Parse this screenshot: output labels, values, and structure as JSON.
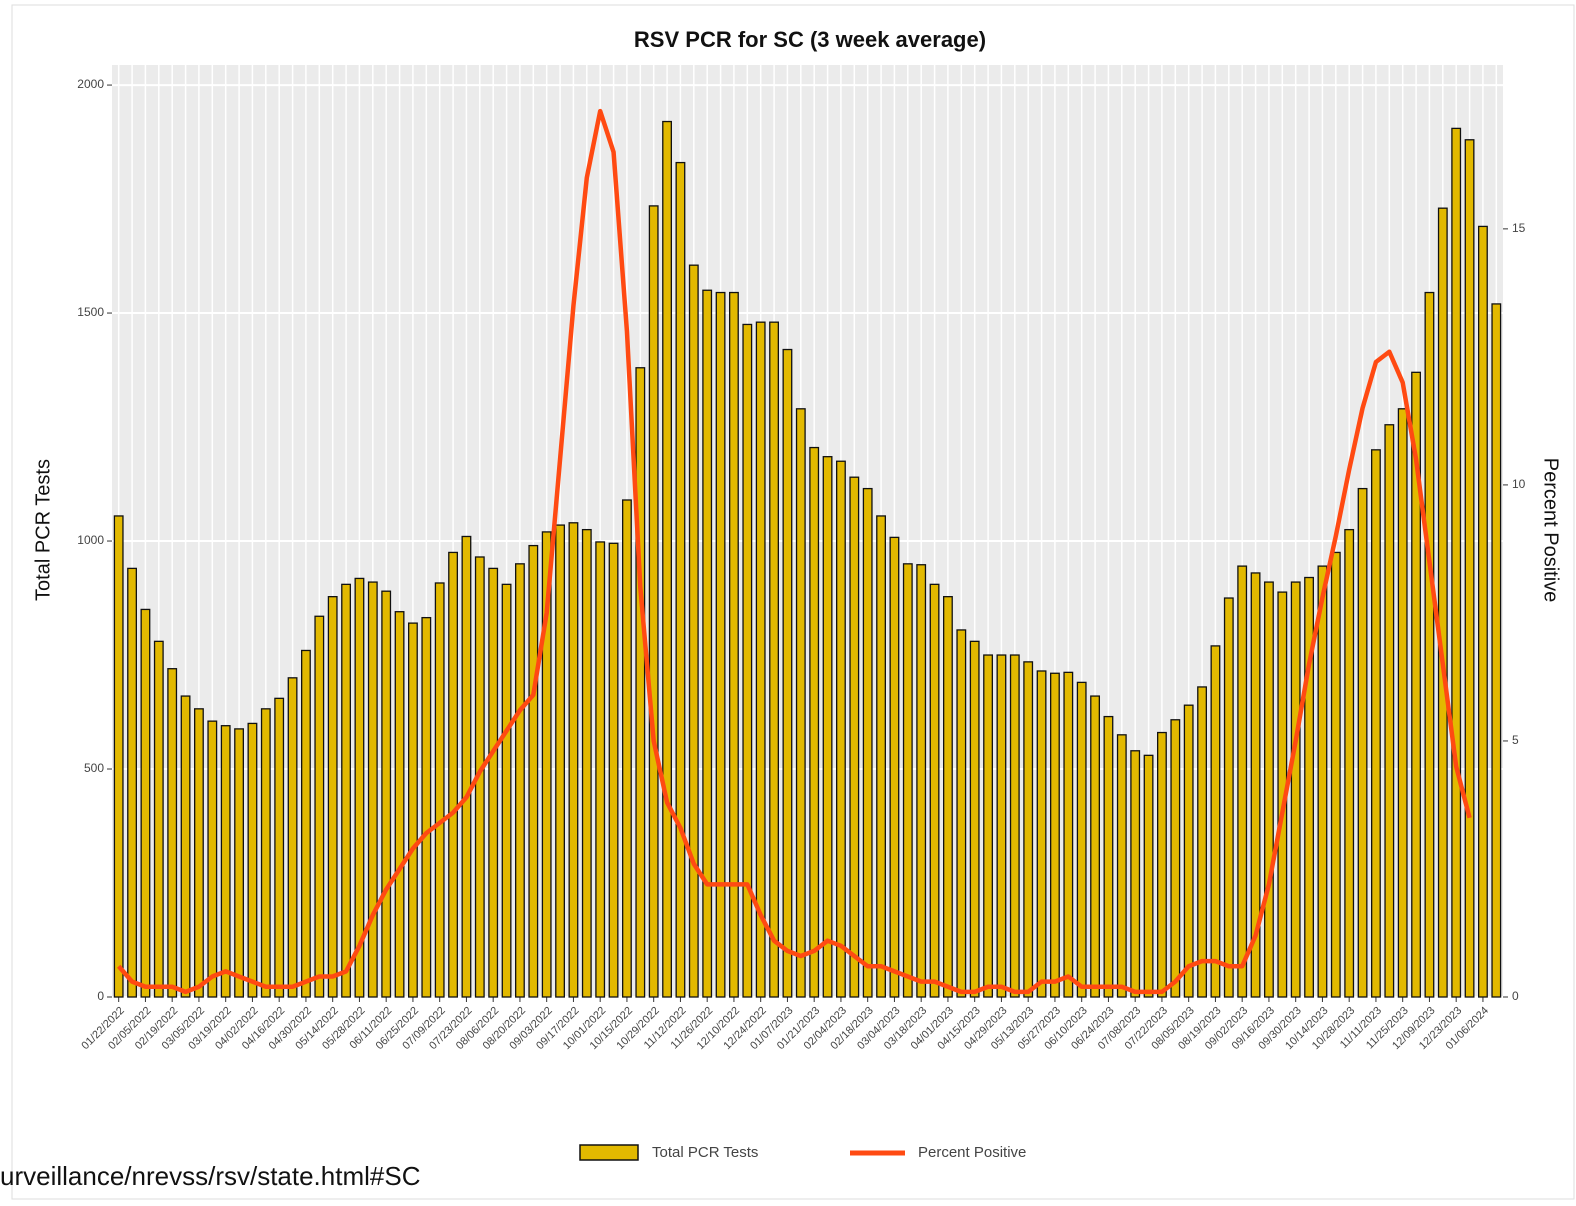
{
  "chart_data": {
    "type": "bar_line",
    "title": "RSV PCR for SC (3 week average)",
    "y_label": "Total PCR Tests",
    "y2_label": "Percent Positive",
    "annotation": "urveillance/nrevss/rsv/state.html#SC",
    "categories": [
      "01/22/2022",
      null,
      "02/05/2022",
      null,
      "02/19/2022",
      null,
      "03/05/2022",
      null,
      "03/19/2022",
      null,
      "04/02/2022",
      null,
      "04/16/2022",
      null,
      "04/30/2022",
      null,
      "05/14/2022",
      null,
      "05/28/2022",
      null,
      "06/11/2022",
      null,
      "06/25/2022",
      null,
      "07/09/2022",
      null,
      "07/23/2022",
      null,
      "08/06/2022",
      null,
      "08/20/2022",
      null,
      "09/03/2022",
      null,
      "09/17/2022",
      null,
      "10/01/2022",
      null,
      "10/15/2022",
      null,
      "10/29/2022",
      null,
      "11/12/2022",
      null,
      "11/26/2022",
      null,
      "12/10/2022",
      null,
      "12/24/2022",
      null,
      "01/07/2023",
      null,
      "01/21/2023",
      null,
      "02/04/2023",
      null,
      "02/18/2023",
      null,
      "03/04/2023",
      null,
      "03/18/2023",
      null,
      "04/01/2023",
      null,
      "04/15/2023",
      null,
      "04/29/2023",
      null,
      "05/13/2023",
      null,
      "05/27/2023",
      null,
      "06/10/2023",
      null,
      "06/24/2023",
      null,
      "07/08/2023",
      null,
      "07/22/2023",
      null,
      "08/05/2023",
      null,
      "08/19/2023",
      null,
      "09/02/2023",
      null,
      "09/16/2023",
      null,
      "09/30/2023",
      null,
      "10/14/2023",
      null,
      "10/28/2023",
      null,
      "11/11/2023",
      null,
      "11/25/2023",
      null,
      "12/09/2023",
      null,
      "12/23/2023",
      null,
      "01/06/2024",
      null
    ],
    "series": [
      {
        "name": "Total PCR Tests",
        "color": "#e2b900",
        "axis": "y",
        "values": [
          1055,
          940,
          850,
          780,
          720,
          660,
          632,
          605,
          595,
          588,
          600,
          632,
          655,
          700,
          760,
          835,
          878,
          905,
          918,
          910,
          890,
          845,
          820,
          832,
          908,
          975,
          1010,
          965,
          940,
          905,
          950,
          990,
          1020,
          1035,
          1040,
          1025,
          998,
          995,
          1090,
          1380,
          1735,
          1920,
          1830,
          1605,
          1550,
          1545,
          1545,
          1475,
          1480,
          1480,
          1420,
          1290,
          1205,
          1185,
          1175,
          1140,
          1115,
          1055,
          1008,
          950,
          948,
          905,
          878,
          805,
          780,
          750,
          750,
          750,
          735,
          715,
          710,
          712,
          690,
          660,
          615,
          575,
          540,
          530,
          580,
          608,
          640,
          680,
          770,
          875,
          945,
          930,
          910,
          888,
          910,
          920,
          945,
          975,
          1025,
          1115,
          1200,
          1255,
          1290,
          1370,
          1545,
          1730,
          1905,
          1880,
          1690,
          1520
        ]
      },
      {
        "name": "Percent Positive",
        "color": "#ff4a12",
        "axis": "y2",
        "values": [
          0.6,
          0.3,
          0.2,
          0.2,
          0.2,
          0.1,
          0.2,
          0.4,
          0.5,
          0.4,
          0.3,
          0.2,
          0.2,
          0.2,
          0.3,
          0.4,
          0.4,
          0.5,
          1.0,
          1.6,
          2.1,
          2.5,
          2.9,
          3.2,
          3.4,
          3.6,
          3.9,
          4.4,
          4.8,
          5.2,
          5.6,
          5.9,
          7.5,
          10.5,
          13.5,
          16.0,
          17.3,
          16.5,
          13.0,
          8.0,
          5.0,
          3.8,
          3.3,
          2.6,
          2.2,
          2.2,
          2.2,
          2.2,
          1.6,
          1.1,
          0.9,
          0.8,
          0.9,
          1.1,
          1.0,
          0.8,
          0.6,
          0.6,
          0.5,
          0.4,
          0.3,
          0.3,
          0.2,
          0.1,
          0.1,
          0.2,
          0.2,
          0.1,
          0.1,
          0.3,
          0.3,
          0.4,
          0.2,
          0.2,
          0.2,
          0.2,
          0.1,
          0.1,
          0.1,
          0.3,
          0.6,
          0.7,
          0.7,
          0.6,
          0.6,
          1.2,
          2.2,
          3.6,
          5.0,
          6.5,
          7.8,
          9.0,
          10.3,
          11.5,
          12.4,
          12.6,
          12.0,
          10.5,
          8.5,
          6.5,
          4.5,
          3.5,
          null,
          null
        ]
      }
    ],
    "ylim": [
      0,
      2044
    ],
    "yticks": [
      0,
      500,
      1000,
      1500,
      2000
    ],
    "y2lim": [
      0,
      18.2
    ],
    "y2ticks": [
      0,
      5,
      10,
      15
    ],
    "grid": true,
    "legend": "bottom"
  }
}
